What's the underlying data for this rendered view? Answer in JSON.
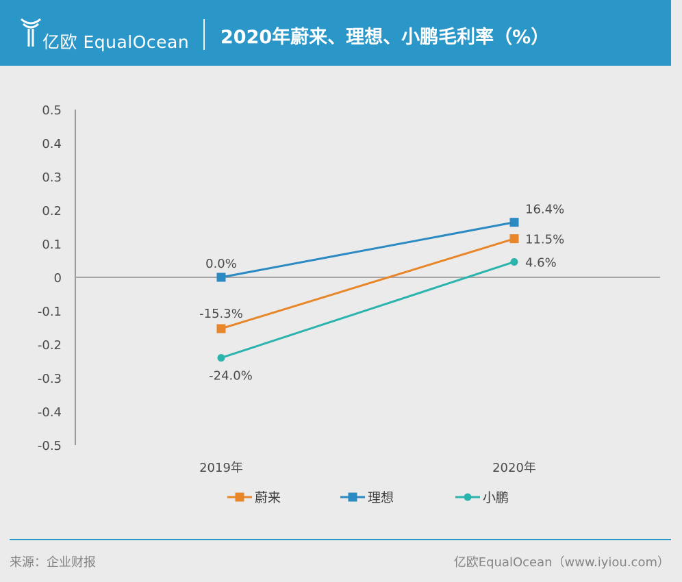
{
  "header": {
    "logo_text": "亿欧 EqualOcean",
    "title": "2020年蔚来、理想、小鹏毛利率（%）",
    "background_color": "#2b97c9"
  },
  "chart_data": {
    "type": "line",
    "categories": [
      "2019年",
      "2020年"
    ],
    "ylim": [
      -0.5,
      0.5
    ],
    "yticks": [
      "0.5",
      "0.4",
      "0.3",
      "0.2",
      "0.1",
      "0",
      "-0.1",
      "-0.2",
      "-0.3",
      "-0.4",
      "-0.5"
    ],
    "legend_position": "bottom",
    "series": [
      {
        "name": "蔚来",
        "values": [
          -0.153,
          0.115
        ],
        "labels": [
          "-15.3%",
          "11.5%"
        ],
        "color": "#e8862a",
        "marker": "square"
      },
      {
        "name": "理想",
        "values": [
          0.0,
          0.164
        ],
        "labels": [
          "0.0%",
          "16.4%"
        ],
        "color": "#2b8ac2",
        "marker": "square"
      },
      {
        "name": "小鹏",
        "values": [
          -0.24,
          0.046
        ],
        "labels": [
          "-24.0%",
          "4.6%"
        ],
        "color": "#2bb3ad",
        "marker": "circle"
      }
    ]
  },
  "footer": {
    "source": "来源：企业财报",
    "brand": "亿欧EqualOcean（www.iyiou.com）"
  }
}
